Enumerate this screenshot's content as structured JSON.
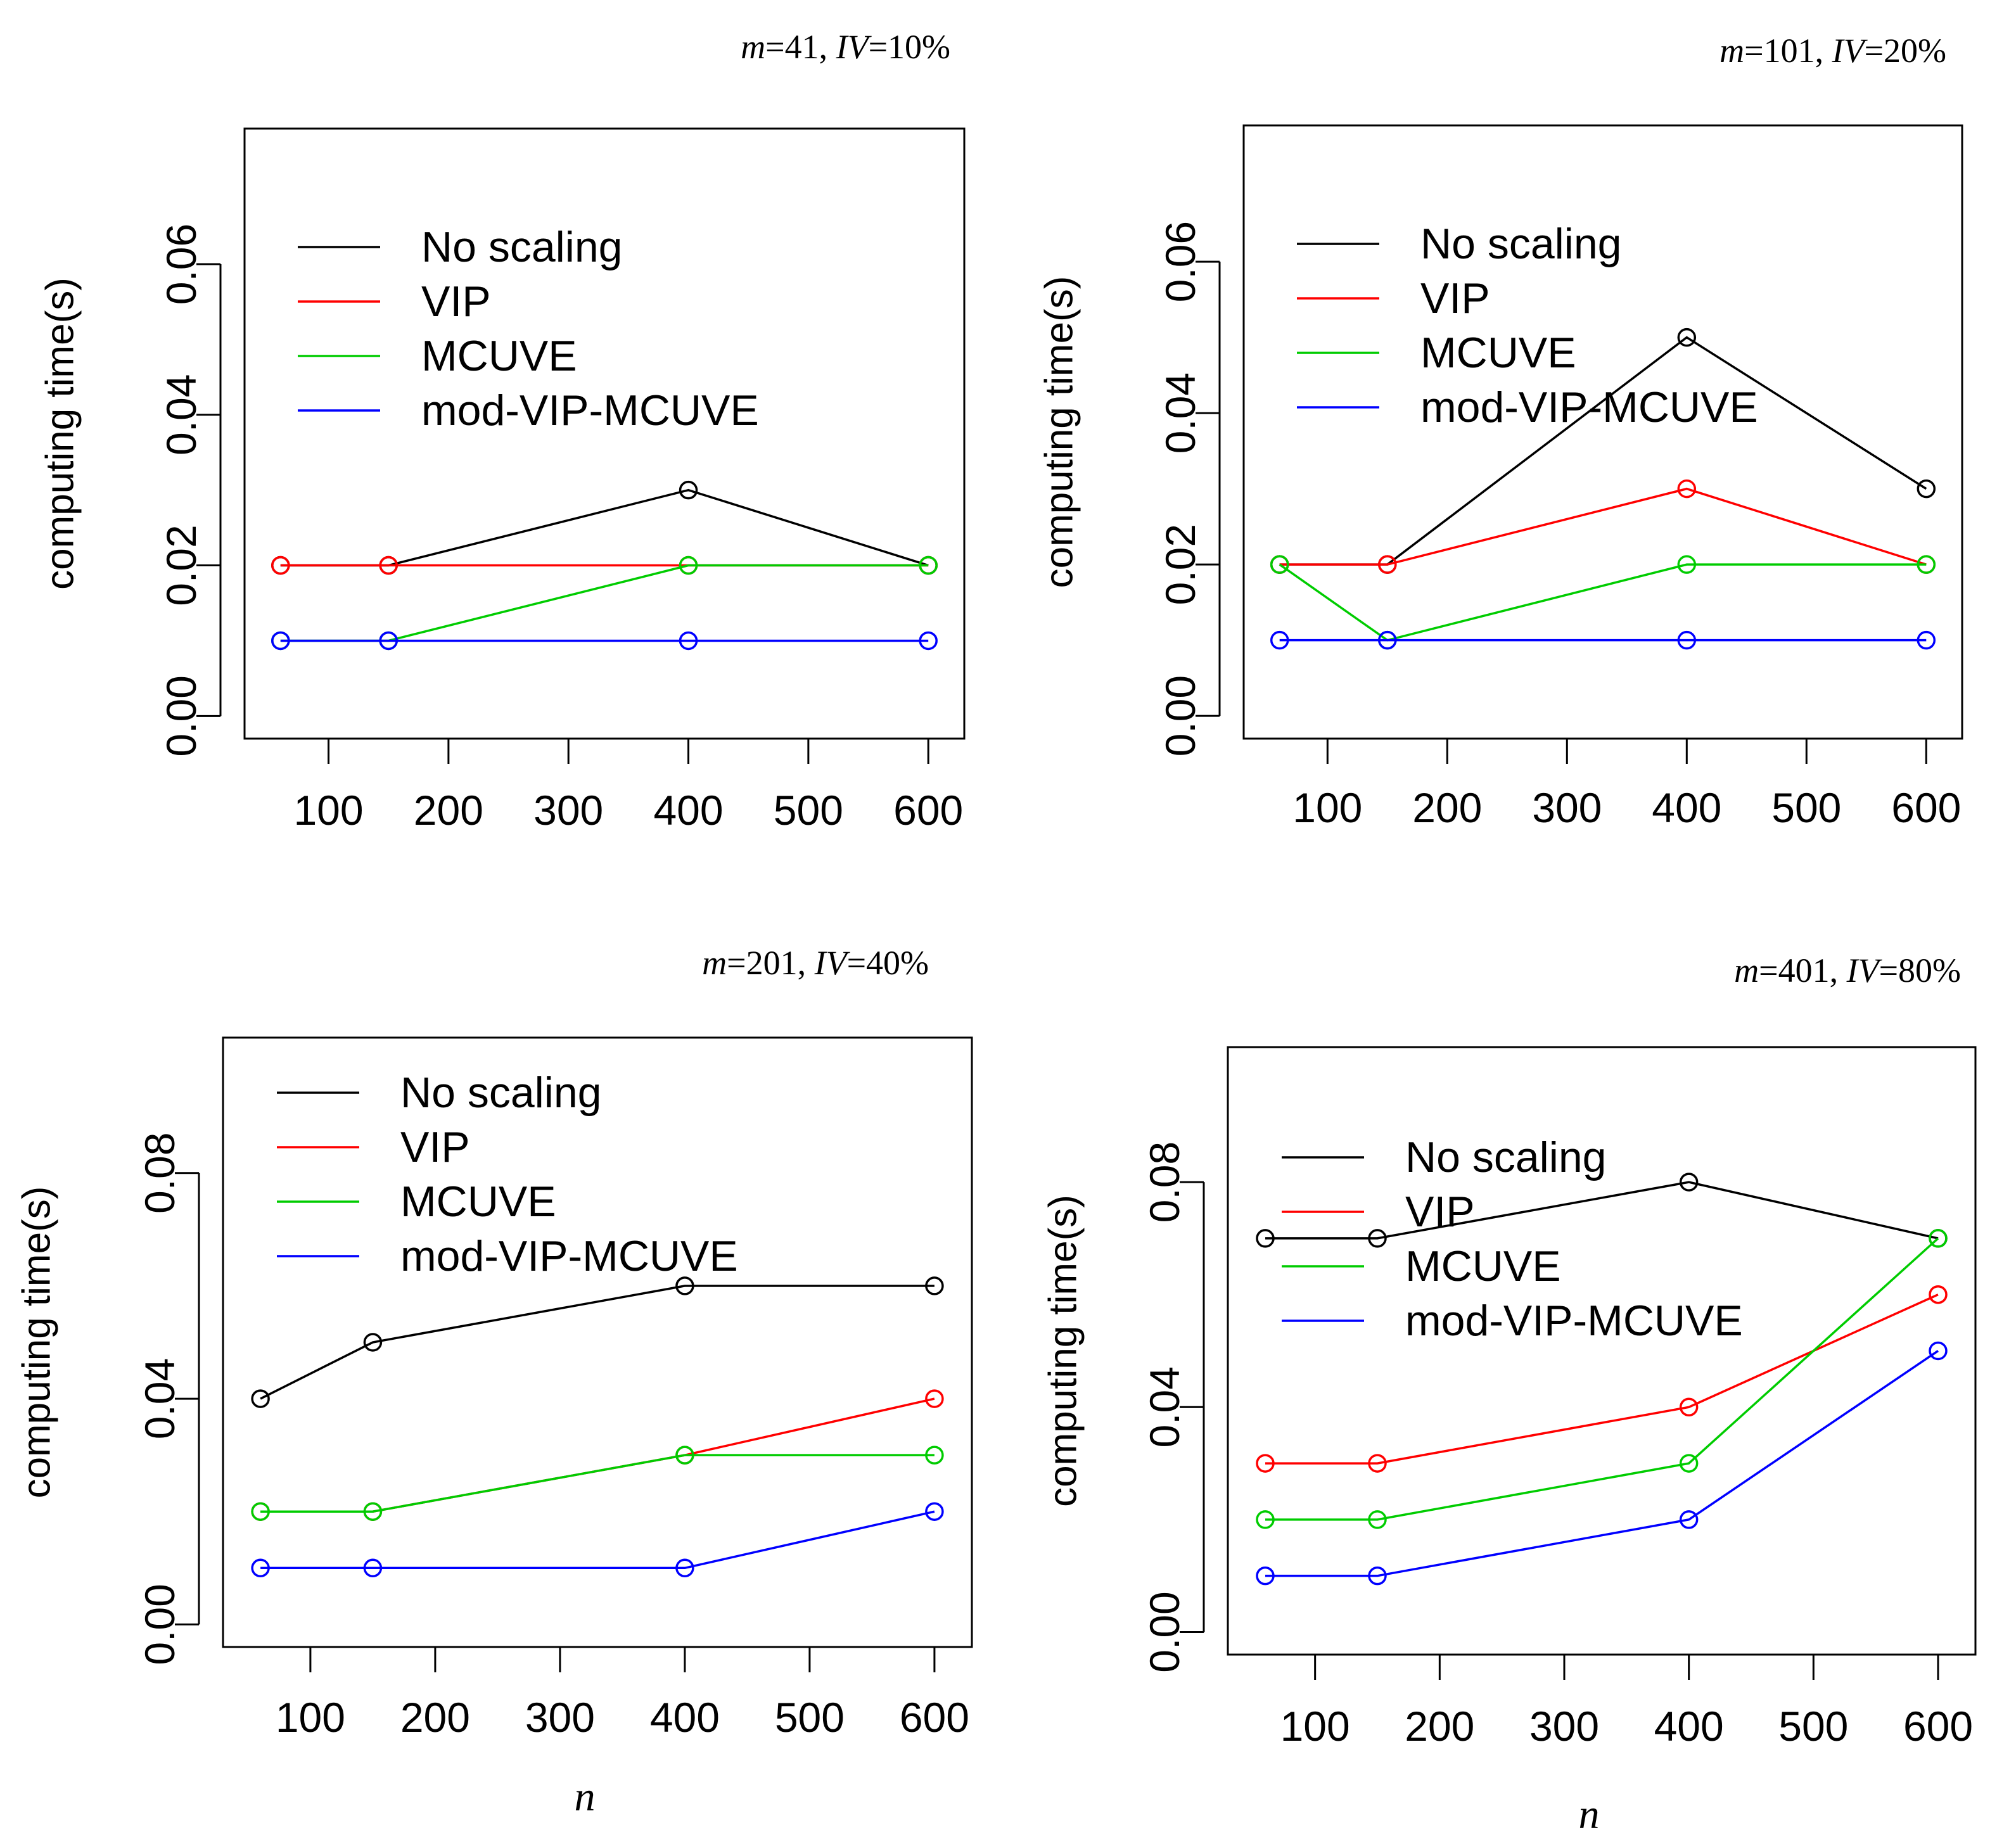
{
  "chart_data": [
    {
      "type": "line",
      "title": {
        "m_label": "m",
        "m_value": "=41, ",
        "iv_label": "IV",
        "iv_value": "=10%"
      },
      "xlabel": "",
      "ylabel": "computing time(s)",
      "x": [
        60,
        150,
        400,
        600
      ],
      "xticks": [
        "100",
        "200",
        "300",
        "400",
        "500",
        "600"
      ],
      "yticks": [
        "0.00",
        "0.02",
        "0.04",
        "0.06"
      ],
      "ylim": [
        -0.003,
        0.078
      ],
      "series": [
        {
          "name": "No scaling",
          "color": "#000000",
          "values": [
            0.02,
            0.02,
            0.03,
            0.02
          ]
        },
        {
          "name": "VIP",
          "color": "#ff0000",
          "values": [
            0.02,
            0.02,
            0.02,
            0.02
          ]
        },
        {
          "name": "MCUVE",
          "color": "#00cc00",
          "values": [
            0.01,
            0.01,
            0.02,
            0.02
          ]
        },
        {
          "name": "mod-VIP-MCUVE",
          "color": "#0000ff",
          "values": [
            0.01,
            0.01,
            0.01,
            0.01
          ]
        }
      ]
    },
    {
      "type": "line",
      "title": {
        "m_label": "m",
        "m_value": "=101, ",
        "iv_label": "IV",
        "iv_value": "=20%"
      },
      "xlabel": "",
      "ylabel": "computing time(s)",
      "x": [
        60,
        150,
        400,
        600
      ],
      "xticks": [
        "100",
        "200",
        "300",
        "400",
        "500",
        "600"
      ],
      "yticks": [
        "0.00",
        "0.02",
        "0.04",
        "0.06"
      ],
      "ylim": [
        -0.003,
        0.078
      ],
      "series": [
        {
          "name": "No scaling",
          "color": "#000000",
          "values": [
            0.02,
            0.02,
            0.05,
            0.03
          ]
        },
        {
          "name": "VIP",
          "color": "#ff0000",
          "values": [
            0.02,
            0.02,
            0.03,
            0.02
          ]
        },
        {
          "name": "MCUVE",
          "color": "#00cc00",
          "values": [
            0.02,
            0.01,
            0.02,
            0.02
          ]
        },
        {
          "name": "mod-VIP-MCUVE",
          "color": "#0000ff",
          "values": [
            0.01,
            0.01,
            0.01,
            0.01
          ]
        }
      ]
    },
    {
      "type": "line",
      "title": {
        "m_label": "m",
        "m_value": "=201, ",
        "iv_label": "IV",
        "iv_value": "=40%"
      },
      "xlabel": "n",
      "ylabel": "computing time(s)",
      "x": [
        60,
        150,
        400,
        600
      ],
      "xticks": [
        "100",
        "200",
        "300",
        "400",
        "500",
        "600"
      ],
      "yticks": [
        "0.00",
        "0.04",
        "0.08"
      ],
      "ylim": [
        -0.004,
        0.104
      ],
      "series": [
        {
          "name": "No scaling",
          "color": "#000000",
          "values": [
            0.04,
            0.05,
            0.06,
            0.06
          ]
        },
        {
          "name": "VIP",
          "color": "#ff0000",
          "values": [
            0.02,
            0.02,
            0.03,
            0.04
          ]
        },
        {
          "name": "MCUVE",
          "color": "#00cc00",
          "values": [
            0.02,
            0.02,
            0.03,
            0.03
          ]
        },
        {
          "name": "mod-VIP-MCUVE",
          "color": "#0000ff",
          "values": [
            0.01,
            0.01,
            0.01,
            0.02
          ]
        }
      ]
    },
    {
      "type": "line",
      "title": {
        "m_label": "m",
        "m_value": "=401, ",
        "iv_label": "IV",
        "iv_value": "=80%"
      },
      "xlabel": "n",
      "ylabel": "computing time(s)",
      "x": [
        60,
        150,
        400,
        600
      ],
      "xticks": [
        "100",
        "200",
        "300",
        "400",
        "500",
        "600"
      ],
      "yticks": [
        "0.00",
        "0.04",
        "0.08"
      ],
      "ylim": [
        -0.004,
        0.104
      ],
      "series": [
        {
          "name": "No scaling",
          "color": "#000000",
          "values": [
            0.07,
            0.07,
            0.08,
            0.07
          ]
        },
        {
          "name": "VIP",
          "color": "#ff0000",
          "values": [
            0.03,
            0.03,
            0.04,
            0.06
          ]
        },
        {
          "name": "MCUVE",
          "color": "#00cc00",
          "values": [
            0.02,
            0.02,
            0.03,
            0.07
          ]
        },
        {
          "name": "mod-VIP-MCUVE",
          "color": "#0000ff",
          "values": [
            0.01,
            0.01,
            0.02,
            0.05
          ]
        }
      ]
    }
  ]
}
